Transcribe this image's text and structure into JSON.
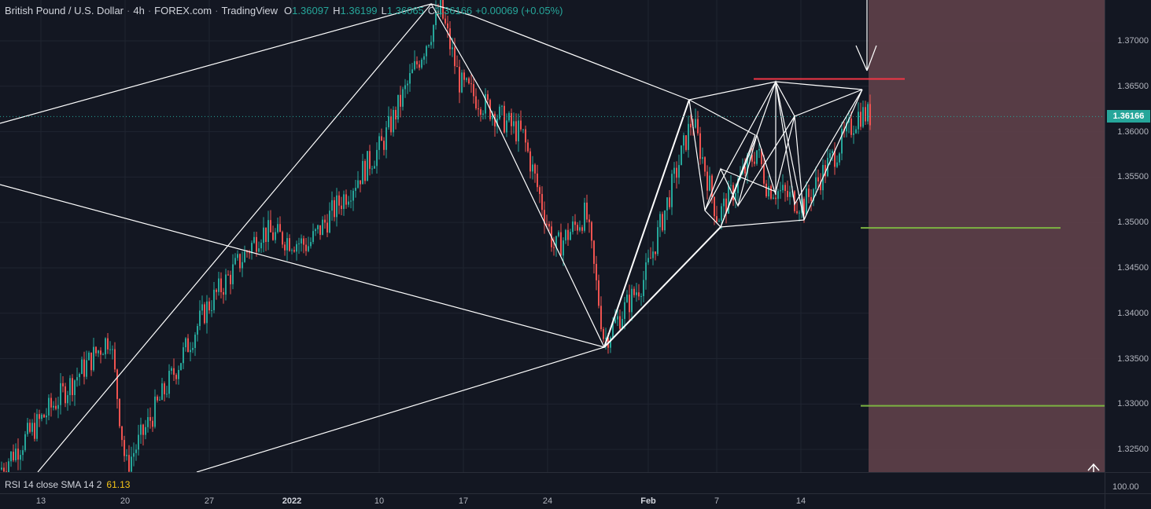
{
  "header": {
    "symbol": "British Pound / U.S. Dollar",
    "interval": "4h",
    "broker": "FOREX.com",
    "platform": "TradingView",
    "open_label": "O",
    "open": "1.36097",
    "high_label": "H",
    "high": "1.36199",
    "low_label": "L",
    "low": "1.36065",
    "close_label": "C",
    "close": "1.36166",
    "change": "+0.00069 (+0.05%)"
  },
  "indicator": {
    "label": "RSI 14 close SMA 14 2",
    "value": "61.13",
    "scale_label": "100.00"
  },
  "price_scale": {
    "current_price": "1.36166",
    "labels": [
      "1.37000",
      "1.36500",
      "1.36000",
      "1.35500",
      "1.35000",
      "1.34500",
      "1.34000",
      "1.33500",
      "1.33000",
      "1.32500"
    ]
  },
  "time_axis": {
    "labels": [
      "13",
      "20",
      "27",
      "2022",
      "10",
      "17",
      "24",
      "Feb",
      "7",
      "14"
    ]
  },
  "colors": {
    "background": "#131722",
    "up": "#26a69a",
    "down": "#ef5350",
    "zone": "#5d4049",
    "target_line": "#7cb342",
    "resistance_line": "#f23645",
    "pattern_line": "#ffffff"
  },
  "chart_data": {
    "type": "candlestick",
    "ylim": [
      1.3225,
      1.3745
    ],
    "waypoints": [
      [
        "13",
        1.3228
      ],
      [
        "20",
        1.3375
      ],
      [
        "20+",
        1.323
      ],
      [
        "27",
        1.3405
      ],
      [
        "2022",
        1.349
      ],
      [
        "2022+",
        1.3475
      ],
      [
        "10",
        1.3585
      ],
      [
        "14",
        1.3735
      ],
      [
        "17",
        1.3652
      ],
      [
        "21",
        1.3595
      ],
      [
        "24",
        1.347
      ],
      [
        "27",
        1.351
      ],
      [
        "31",
        1.337
      ],
      [
        "Feb",
        1.344
      ],
      [
        "4",
        1.3615
      ],
      [
        "7",
        1.3505
      ],
      [
        "10",
        1.358
      ],
      [
        "11",
        1.354
      ],
      [
        "14",
        1.352
      ],
      [
        "18",
        1.362
      ],
      [
        "19",
        1.3617
      ]
    ],
    "targets": [
      1.3494,
      1.3298
    ],
    "resistance": 1.3658,
    "current_price": 1.36166
  }
}
